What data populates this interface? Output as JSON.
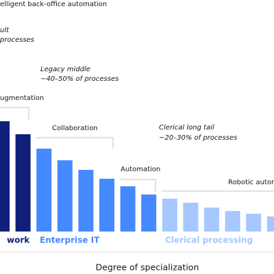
{
  "chart_data": {
    "type": "bar",
    "xlabel": "Degree of specialization",
    "ylim": [
      0,
      100
    ],
    "annotations": [
      "elligent back-office automation",
      "ult",
      "processes",
      "Legacy middle",
      "~40–50% of processes",
      "ugmentation",
      "Collaboration",
      "Clerical long tail",
      "~20–30% of processes",
      "Automation",
      "Robotic autom"
    ],
    "groups": [
      {
        "label": "work",
        "color": "#0f1f7a",
        "values": [
          80.5,
          71
        ]
      },
      {
        "label": "Enterprise IT",
        "color": "#4589ff",
        "values": [
          60.5,
          52,
          45,
          38.5,
          33,
          27
        ]
      },
      {
        "label": "Clerical processing",
        "color": "#a6c8ff",
        "values": [
          24,
          21,
          17.5,
          15,
          13,
          11
        ]
      }
    ]
  }
}
